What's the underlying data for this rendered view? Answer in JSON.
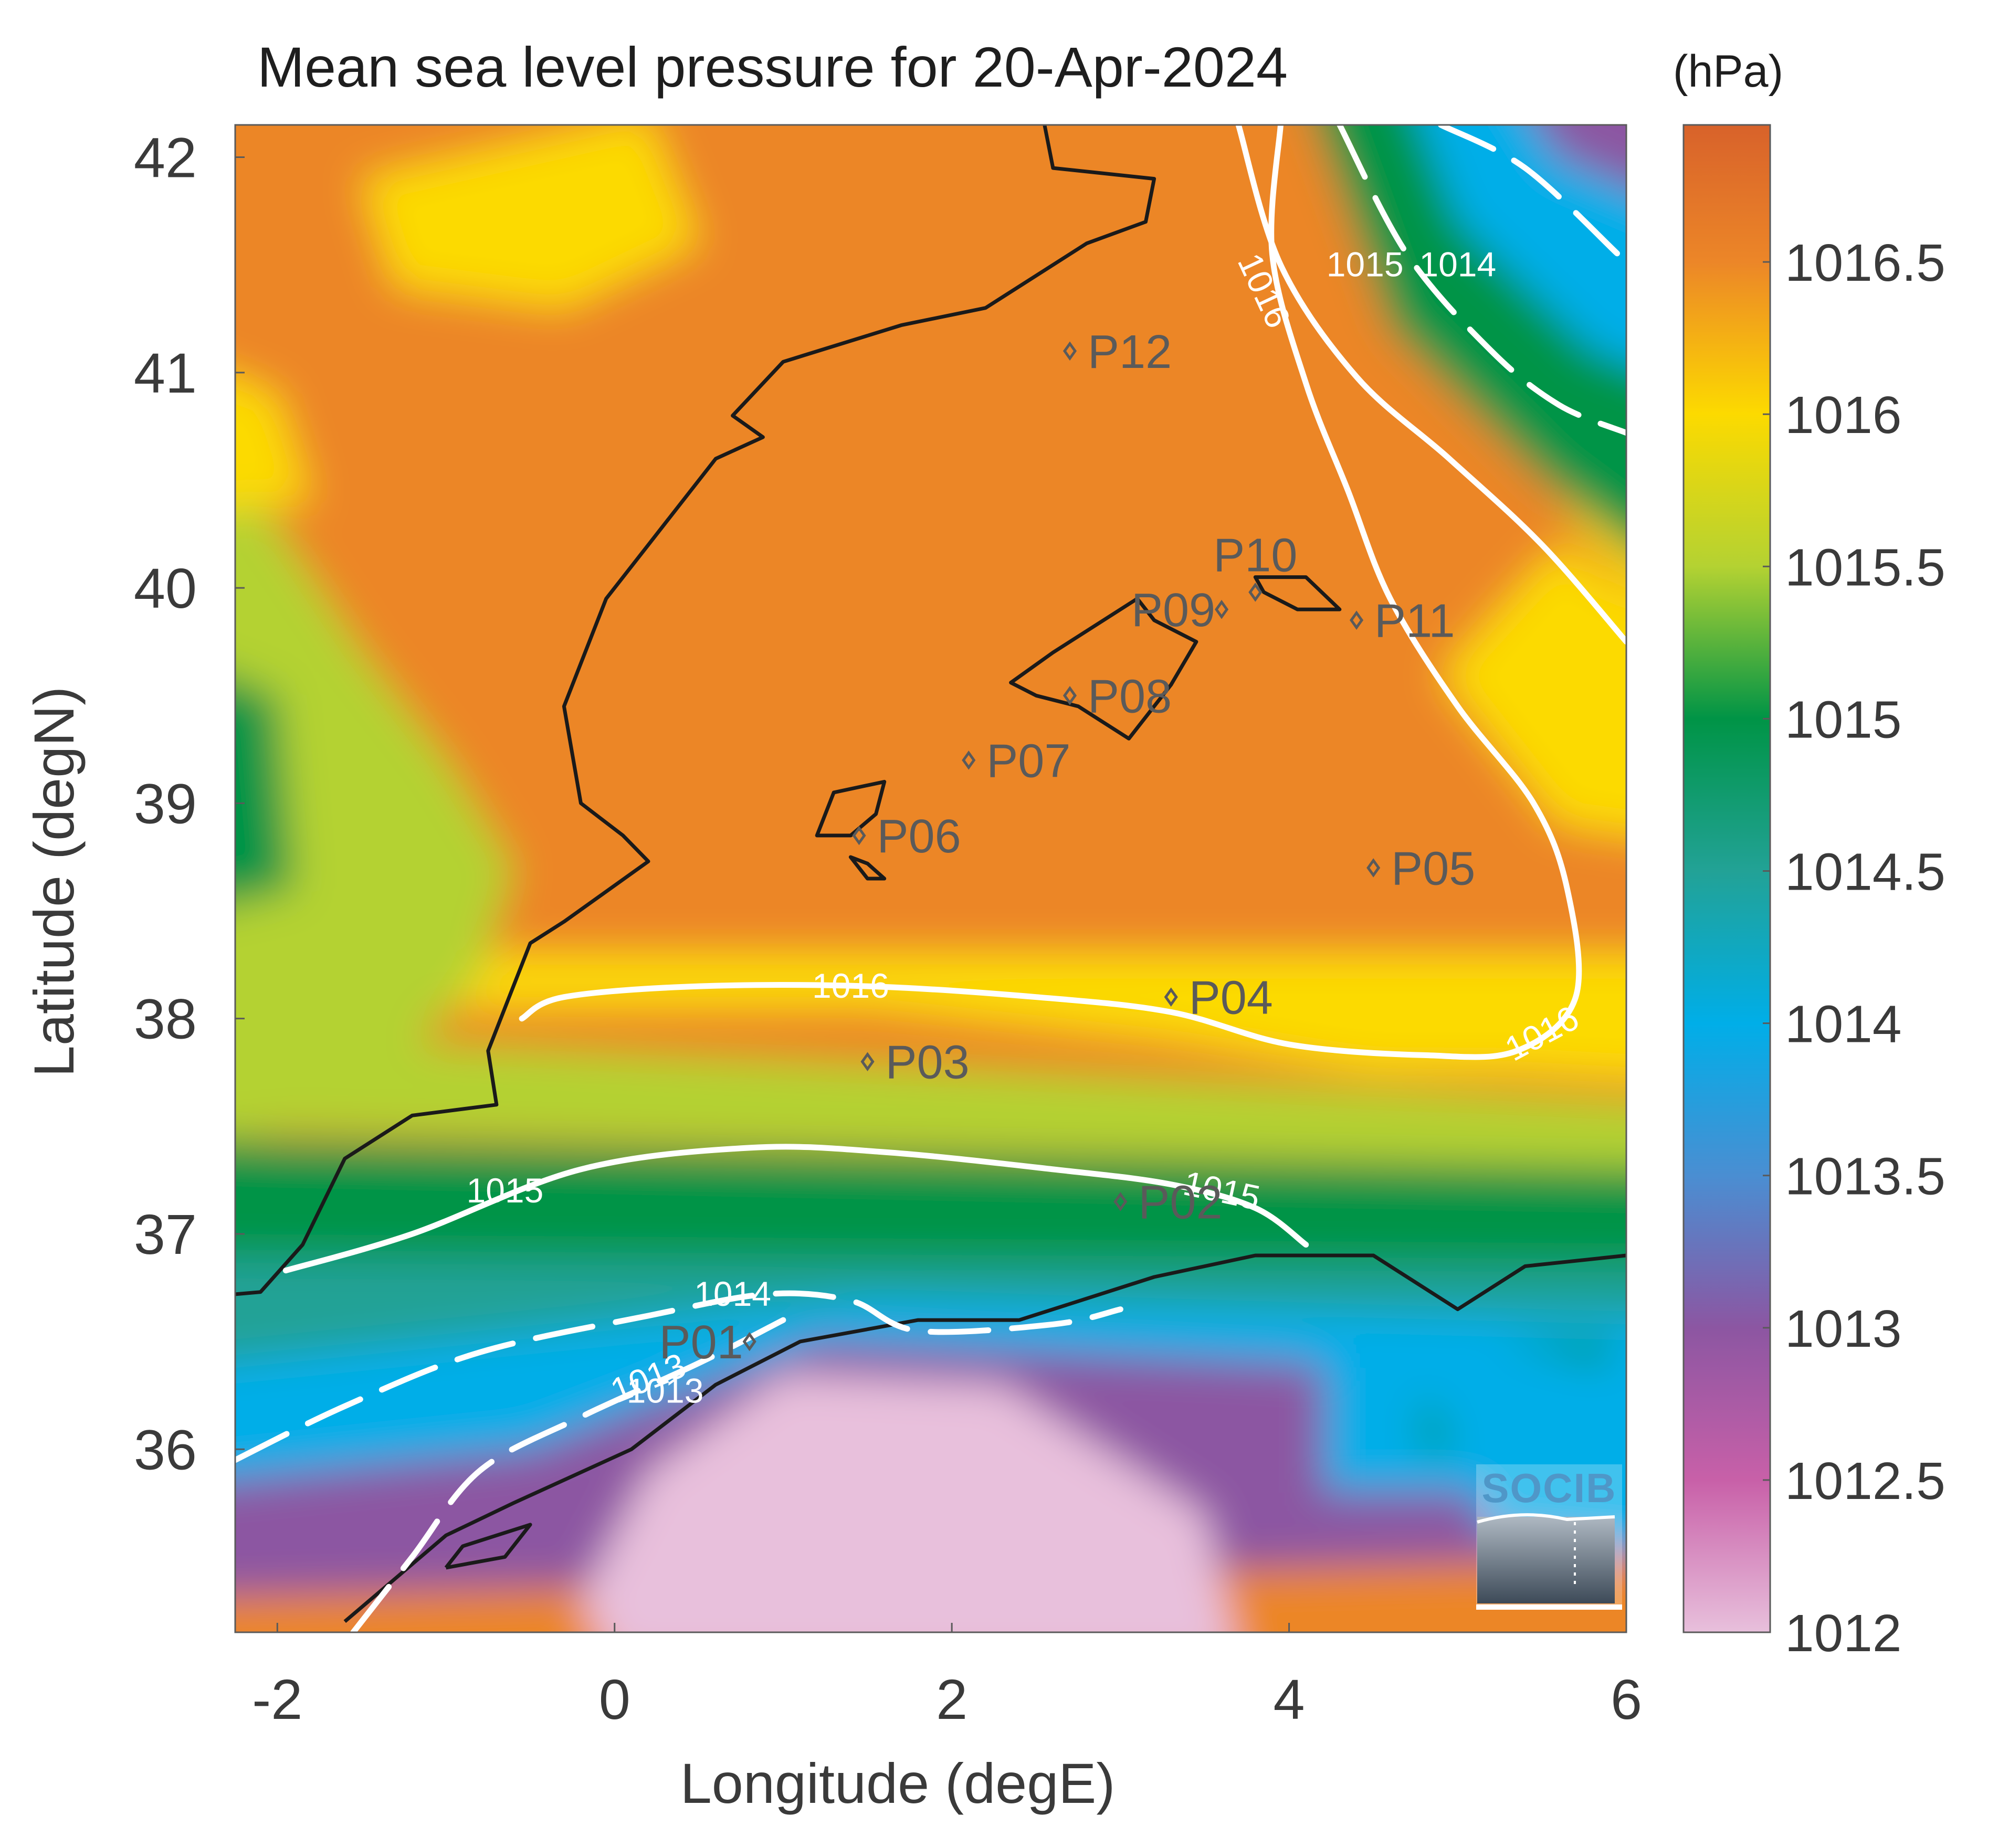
{
  "title": "Mean sea level pressure for 20-Apr-2024",
  "unit": "(hPa)",
  "logo_text": "SOCIB",
  "colors": {
    "land_border": "#1a1a1a",
    "contour": "#ffffff",
    "station": "#5a5a5a",
    "axis_text": "#3a3a3a",
    "title_text": "#1e1e1e"
  },
  "chart_data": {
    "type": "heatmap",
    "title": "Mean sea level pressure for 20-Apr-2024",
    "xlabel": "Longitude (degE)",
    "ylabel": "Latitude (degN)",
    "xlim": [
      -2.25,
      6.0
    ],
    "ylim": [
      35.15,
      42.15
    ],
    "xticks": [
      -2,
      0,
      2,
      4,
      6
    ],
    "yticks": [
      36,
      37,
      38,
      39,
      40,
      41,
      42
    ],
    "colorbar": {
      "label": "(hPa)",
      "range": [
        1012.0,
        1016.95
      ],
      "ticks": [
        1012,
        1012.5,
        1013,
        1013.5,
        1014,
        1014.5,
        1015,
        1015.5,
        1016,
        1016.5
      ],
      "tick_labels": [
        "1012",
        "1012.5",
        "1013",
        "1013.5",
        "1014",
        "1014.5",
        "1015",
        "1015.5",
        "1016",
        "1016.5"
      ],
      "colormap": [
        {
          "v": 1012.0,
          "c": "#e8c0dc"
        },
        {
          "v": 1012.5,
          "c": "#c860a8"
        },
        {
          "v": 1013.0,
          "c": "#8c56a2"
        },
        {
          "v": 1013.5,
          "c": "#4a8ed2"
        },
        {
          "v": 1014.0,
          "c": "#00aee8"
        },
        {
          "v": 1014.5,
          "c": "#22a296"
        },
        {
          "v": 1015.0,
          "c": "#009446"
        },
        {
          "v": 1015.5,
          "c": "#b4d232"
        },
        {
          "v": 1016.0,
          "c": "#fcda00"
        },
        {
          "v": 1016.5,
          "c": "#ec8628"
        },
        {
          "v": 1016.95,
          "c": "#d8622a"
        }
      ]
    },
    "contours": [
      {
        "level": 1013,
        "label": "1013",
        "dashed": true,
        "points": [
          [
            -1.55,
            35.15
          ],
          [
            -1.2,
            35.5
          ],
          [
            -0.8,
            35.9
          ],
          [
            -0.2,
            36.15
          ],
          [
            0.5,
            36.4
          ],
          [
            1.0,
            36.6
          ]
        ],
        "label_at": [
          0.3,
          36.27
        ]
      },
      {
        "level": 1013,
        "label": "",
        "dashed": true,
        "points": [
          [
            4.9,
            42.15
          ],
          [
            5.4,
            41.95
          ],
          [
            5.95,
            41.55
          ]
        ]
      },
      {
        "level": 1014,
        "label": "1014",
        "dashed": true,
        "points": [
          [
            -2.25,
            35.95
          ],
          [
            -1.6,
            36.2
          ],
          [
            -0.8,
            36.45
          ],
          [
            0.2,
            36.62
          ],
          [
            0.9,
            36.72
          ],
          [
            1.4,
            36.69
          ],
          [
            1.8,
            36.55
          ],
          [
            2.6,
            36.58
          ],
          [
            3.0,
            36.65
          ]
        ],
        "label_at": [
          0.7,
          36.72
        ]
      },
      {
        "level": 1014,
        "label": "1014",
        "dashed": true,
        "points": [
          [
            4.3,
            42.15
          ],
          [
            4.7,
            41.55
          ],
          [
            5.2,
            41.1
          ],
          [
            5.6,
            40.85
          ],
          [
            6.0,
            40.72
          ]
        ],
        "label_at": [
          5.0,
          41.5
        ]
      },
      {
        "level": 1015,
        "label": "1015",
        "dashed": false,
        "points": [
          [
            -1.95,
            36.83
          ],
          [
            -1.2,
            37.0
          ],
          [
            -0.2,
            37.3
          ],
          [
            0.8,
            37.4
          ],
          [
            1.6,
            37.38
          ],
          [
            2.6,
            37.3
          ],
          [
            3.3,
            37.23
          ],
          [
            3.8,
            37.12
          ],
          [
            4.1,
            36.95
          ]
        ],
        "label_at": [
          -0.65,
          37.2
        ]
      },
      {
        "level": 1015,
        "label": "1015",
        "dashed": false,
        "points": [
          [
            3.7,
            42.15
          ],
          [
            3.95,
            41.5
          ],
          [
            4.4,
            40.98
          ],
          [
            4.95,
            40.6
          ],
          [
            5.5,
            40.2
          ],
          [
            6.0,
            39.75
          ]
        ],
        "label_at": [
          4.45,
          41.5
        ]
      },
      {
        "level": 1016,
        "label": "1016",
        "dashed": false,
        "points": [
          [
            -0.55,
            38.0
          ],
          [
            -0.3,
            38.1
          ],
          [
            0.5,
            38.15
          ],
          [
            1.5,
            38.15
          ],
          [
            2.5,
            38.1
          ],
          [
            3.3,
            38.03
          ],
          [
            4.0,
            37.88
          ],
          [
            4.8,
            37.83
          ],
          [
            5.35,
            37.85
          ],
          [
            5.7,
            38.1
          ],
          [
            5.65,
            38.6
          ],
          [
            5.45,
            39.0
          ],
          [
            5.0,
            39.45
          ],
          [
            4.6,
            39.95
          ],
          [
            4.35,
            40.45
          ],
          [
            4.1,
            40.95
          ],
          [
            3.9,
            41.55
          ],
          [
            3.95,
            42.15
          ]
        ],
        "label_at": [
          1.4,
          38.15
        ]
      }
    ],
    "contour_labels_extra": [
      {
        "text": "1016",
        "at": [
          5.5,
          37.93
        ],
        "rotate": -28
      },
      {
        "text": "1016",
        "at": [
          3.85,
          41.38
        ],
        "rotate": 65
      },
      {
        "text": "1015",
        "at": [
          3.6,
          37.2
        ],
        "rotate": 12
      },
      {
        "text": "1013",
        "at": [
          0.2,
          36.33
        ],
        "rotate": -22
      }
    ],
    "stations": [
      {
        "name": "P01",
        "lon": 0.8,
        "lat": 36.5,
        "label_side": "left"
      },
      {
        "name": "P02",
        "lon": 3.0,
        "lat": 37.15,
        "label_side": "right"
      },
      {
        "name": "P03",
        "lon": 1.5,
        "lat": 37.8,
        "label_side": "right"
      },
      {
        "name": "P04",
        "lon": 3.3,
        "lat": 38.1,
        "label_side": "right"
      },
      {
        "name": "P05",
        "lon": 4.5,
        "lat": 38.7,
        "label_side": "right"
      },
      {
        "name": "P06",
        "lon": 1.45,
        "lat": 38.85,
        "label_side": "right"
      },
      {
        "name": "P07",
        "lon": 2.1,
        "lat": 39.2,
        "label_side": "right"
      },
      {
        "name": "P08",
        "lon": 2.7,
        "lat": 39.5,
        "label_side": "right"
      },
      {
        "name": "P09",
        "lon": 3.6,
        "lat": 39.9,
        "label_side": "left"
      },
      {
        "name": "P10",
        "lon": 3.8,
        "lat": 39.98,
        "label_side": "top"
      },
      {
        "name": "P11",
        "lon": 4.4,
        "lat": 39.85,
        "label_side": "right"
      },
      {
        "name": "P12",
        "lon": 2.7,
        "lat": 41.1,
        "label_side": "right"
      }
    ]
  }
}
